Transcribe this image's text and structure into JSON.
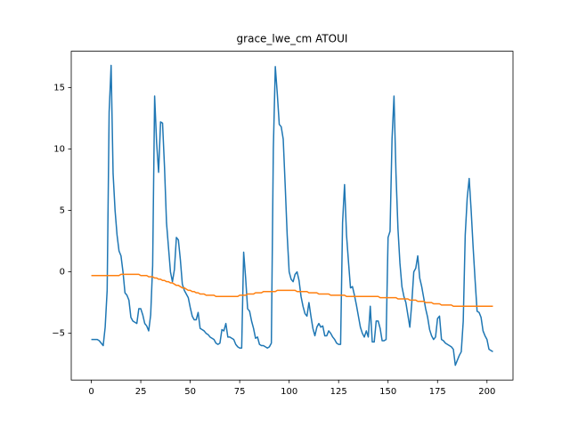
{
  "chart_data": {
    "type": "line",
    "title": "grace_lwe_cm ATOUI",
    "x": [
      0,
      1,
      2,
      3,
      4,
      5,
      6,
      7,
      8,
      9,
      10,
      11,
      12,
      13,
      14,
      15,
      16,
      17,
      18,
      19,
      20,
      21,
      22,
      23,
      24,
      25,
      26,
      27,
      28,
      29,
      30,
      31,
      32,
      33,
      34,
      35,
      36,
      37,
      38,
      39,
      40,
      41,
      42,
      43,
      44,
      45,
      46,
      47,
      48,
      49,
      50,
      51,
      52,
      53,
      54,
      55,
      56,
      57,
      58,
      59,
      60,
      61,
      62,
      63,
      64,
      65,
      66,
      67,
      68,
      69,
      70,
      71,
      72,
      73,
      74,
      75,
      76,
      77,
      78,
      79,
      80,
      81,
      82,
      83,
      84,
      85,
      86,
      87,
      88,
      89,
      90,
      91,
      92,
      93,
      94,
      95,
      96,
      97,
      98,
      99,
      100,
      101,
      102,
      103,
      104,
      105,
      106,
      107,
      108,
      109,
      110,
      111,
      112,
      113,
      114,
      115,
      116,
      117,
      118,
      119,
      120,
      121,
      122,
      123,
      124,
      125,
      126,
      127,
      128,
      129,
      130,
      131,
      132,
      133,
      134,
      135,
      136,
      137,
      138,
      139,
      140,
      141,
      142,
      143,
      144,
      145,
      146,
      147,
      148,
      149,
      150,
      151,
      152,
      153,
      154,
      155,
      156,
      157,
      158,
      159,
      160,
      161,
      162,
      163,
      164,
      165,
      166,
      167,
      168,
      169,
      170,
      171,
      172,
      173,
      174,
      175,
      176,
      177,
      178,
      179,
      180,
      181,
      182,
      183,
      184,
      185,
      186,
      187,
      188,
      189,
      190,
      191,
      192,
      193,
      194,
      195,
      196,
      197,
      198,
      199,
      200,
      201,
      202,
      203
    ],
    "series": [
      {
        "color": "#1f77b4",
        "values": [
          -5.5,
          -5.5,
          -5.5,
          -5.5,
          -5.6,
          -5.8,
          -6.0,
          -4.5,
          -1.5,
          13.0,
          16.8,
          8.0,
          5.0,
          3.0,
          1.7,
          1.3,
          0.0,
          -1.7,
          -1.9,
          -2.3,
          -3.7,
          -4.0,
          -4.1,
          -4.2,
          -3.0,
          -3.0,
          -3.5,
          -4.2,
          -4.4,
          -4.8,
          -3.5,
          0.5,
          14.3,
          10.5,
          8.1,
          12.2,
          12.1,
          8.5,
          4.0,
          2.0,
          0.0,
          -0.8,
          0.2,
          2.8,
          2.6,
          1.0,
          -1.0,
          -1.5,
          -1.8,
          -2.1,
          -2.9,
          -3.6,
          -3.9,
          -3.9,
          -3.3,
          -4.6,
          -4.7,
          -4.8,
          -5.0,
          -5.1,
          -5.3,
          -5.4,
          -5.5,
          -5.8,
          -5.9,
          -5.8,
          -4.7,
          -4.8,
          -4.2,
          -5.3,
          -5.3,
          -5.4,
          -5.5,
          -5.9,
          -6.1,
          -6.2,
          -6.2,
          1.6,
          -0.5,
          -3.0,
          -3.2,
          -4.0,
          -4.6,
          -5.4,
          -5.3,
          -5.9,
          -6.0,
          -6.0,
          -6.1,
          -6.2,
          -6.1,
          -5.8,
          10.0,
          16.7,
          14.5,
          12.0,
          11.8,
          10.8,
          7.0,
          3.0,
          0.0,
          -0.6,
          -0.8,
          -0.2,
          0.0,
          -0.7,
          -2.0,
          -2.8,
          -3.4,
          -3.6,
          -2.5,
          -3.6,
          -4.6,
          -5.2,
          -4.5,
          -4.2,
          -4.5,
          -4.4,
          -5.2,
          -5.2,
          -4.8,
          -5.0,
          -5.3,
          -5.5,
          -5.8,
          -5.9,
          -5.9,
          4.0,
          7.1,
          3.0,
          0.8,
          -1.3,
          -1.2,
          -1.9,
          -2.7,
          -3.6,
          -4.5,
          -5.0,
          -5.3,
          -4.8,
          -5.3,
          -2.8,
          -5.7,
          -5.7,
          -4.0,
          -4.0,
          -4.6,
          -5.6,
          -5.6,
          -5.5,
          2.8,
          3.3,
          10.8,
          14.3,
          8.0,
          3.5,
          0.7,
          -1.2,
          -2.0,
          -2.5,
          -3.5,
          -4.5,
          -2.5,
          0.0,
          0.3,
          1.3,
          -0.5,
          -1.2,
          -2.1,
          -3.0,
          -3.7,
          -4.7,
          -5.2,
          -5.5,
          -5.3,
          -3.8,
          -3.6,
          -5.5,
          -5.6,
          -5.8,
          -5.9,
          -6.0,
          -6.1,
          -6.3,
          -7.6,
          -7.2,
          -6.8,
          -6.5,
          -4.0,
          3.0,
          6.0,
          7.6,
          5.0,
          2.0,
          -0.7,
          -3.2,
          -3.3,
          -3.7,
          -4.8,
          -5.2,
          -5.5,
          -6.3,
          -6.4,
          -6.5
        ]
      },
      {
        "color": "#ff7f0e",
        "values": [
          -0.3,
          -0.3,
          -0.3,
          -0.3,
          -0.3,
          -0.3,
          -0.3,
          -0.3,
          -0.3,
          -0.3,
          -0.3,
          -0.3,
          -0.3,
          -0.3,
          -0.3,
          -0.2,
          -0.2,
          -0.2,
          -0.2,
          -0.2,
          -0.2,
          -0.2,
          -0.2,
          -0.2,
          -0.2,
          -0.3,
          -0.3,
          -0.3,
          -0.3,
          -0.4,
          -0.4,
          -0.4,
          -0.5,
          -0.5,
          -0.6,
          -0.6,
          -0.7,
          -0.7,
          -0.8,
          -0.8,
          -0.9,
          -0.9,
          -1.0,
          -1.1,
          -1.1,
          -1.2,
          -1.3,
          -1.3,
          -1.4,
          -1.5,
          -1.5,
          -1.6,
          -1.6,
          -1.7,
          -1.7,
          -1.8,
          -1.8,
          -1.8,
          -1.9,
          -1.9,
          -1.9,
          -1.9,
          -1.9,
          -2.0,
          -2.0,
          -2.0,
          -2.0,
          -2.0,
          -2.0,
          -2.0,
          -2.0,
          -2.0,
          -2.0,
          -2.0,
          -2.0,
          -1.9,
          -1.9,
          -1.9,
          -1.9,
          -1.8,
          -1.8,
          -1.8,
          -1.8,
          -1.7,
          -1.7,
          -1.7,
          -1.7,
          -1.6,
          -1.6,
          -1.6,
          -1.6,
          -1.6,
          -1.6,
          -1.6,
          -1.5,
          -1.5,
          -1.5,
          -1.5,
          -1.5,
          -1.5,
          -1.5,
          -1.5,
          -1.5,
          -1.5,
          -1.6,
          -1.6,
          -1.6,
          -1.6,
          -1.6,
          -1.6,
          -1.7,
          -1.7,
          -1.7,
          -1.7,
          -1.7,
          -1.8,
          -1.8,
          -1.8,
          -1.8,
          -1.8,
          -1.8,
          -1.9,
          -1.9,
          -1.9,
          -1.9,
          -1.9,
          -1.9,
          -1.9,
          -1.9,
          -2.0,
          -2.0,
          -2.0,
          -2.0,
          -2.0,
          -2.0,
          -2.0,
          -2.0,
          -2.0,
          -2.0,
          -2.0,
          -2.0,
          -2.0,
          -2.0,
          -2.0,
          -2.0,
          -2.0,
          -2.1,
          -2.1,
          -2.1,
          -2.1,
          -2.1,
          -2.1,
          -2.1,
          -2.1,
          -2.1,
          -2.2,
          -2.2,
          -2.2,
          -2.2,
          -2.2,
          -2.2,
          -2.3,
          -2.3,
          -2.3,
          -2.3,
          -2.4,
          -2.4,
          -2.4,
          -2.4,
          -2.5,
          -2.5,
          -2.5,
          -2.5,
          -2.6,
          -2.6,
          -2.6,
          -2.6,
          -2.7,
          -2.7,
          -2.7,
          -2.7,
          -2.7,
          -2.7,
          -2.8,
          -2.8,
          -2.8,
          -2.8,
          -2.8,
          -2.8,
          -2.8,
          -2.8,
          -2.8,
          -2.8,
          -2.8,
          -2.8,
          -2.8,
          -2.8,
          -2.8,
          -2.8,
          -2.8,
          -2.8,
          -2.8,
          -2.8,
          -2.8
        ]
      }
    ],
    "xlim": [
      -10.15,
      213.15
    ],
    "xticks": [
      0,
      25,
      50,
      75,
      100,
      125,
      150,
      175,
      200
    ],
    "ylim": [
      -8.8,
      17.95
    ],
    "yticks": [
      {
        "value": -5,
        "label": "−5"
      },
      0,
      5,
      10,
      15
    ]
  }
}
